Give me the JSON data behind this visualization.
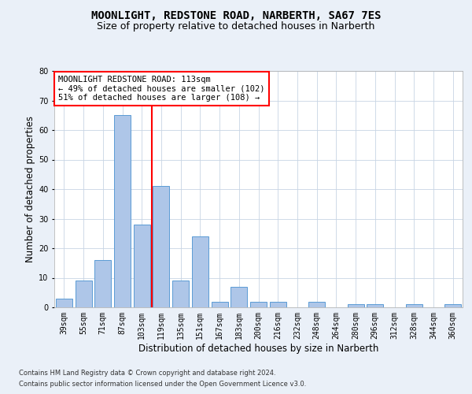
{
  "title": "MOONLIGHT, REDSTONE ROAD, NARBERTH, SA67 7ES",
  "subtitle": "Size of property relative to detached houses in Narberth",
  "xlabel": "Distribution of detached houses by size in Narberth",
  "ylabel": "Number of detached properties",
  "footnote1": "Contains HM Land Registry data © Crown copyright and database right 2024.",
  "footnote2": "Contains public sector information licensed under the Open Government Licence v3.0.",
  "categories": [
    "39sqm",
    "55sqm",
    "71sqm",
    "87sqm",
    "103sqm",
    "119sqm",
    "135sqm",
    "151sqm",
    "167sqm",
    "183sqm",
    "200sqm",
    "216sqm",
    "232sqm",
    "248sqm",
    "264sqm",
    "280sqm",
    "296sqm",
    "312sqm",
    "328sqm",
    "344sqm",
    "360sqm"
  ],
  "values": [
    3,
    9,
    16,
    65,
    28,
    41,
    9,
    24,
    2,
    7,
    2,
    2,
    0,
    2,
    0,
    1,
    1,
    0,
    1,
    0,
    1
  ],
  "bar_color": "#aec6e8",
  "bar_edge_color": "#5b9bd5",
  "property_line_x": 4.5,
  "annotation_text": "MOONLIGHT REDSTONE ROAD: 113sqm\n← 49% of detached houses are smaller (102)\n51% of detached houses are larger (108) →",
  "annotation_box_color": "white",
  "annotation_box_edge_color": "red",
  "vline_color": "red",
  "ylim": [
    0,
    80
  ],
  "yticks": [
    0,
    10,
    20,
    30,
    40,
    50,
    60,
    70,
    80
  ],
  "background_color": "#eaf0f8",
  "plot_background_color": "white",
  "grid_color": "#c8d4e4",
  "title_fontsize": 10,
  "subtitle_fontsize": 9,
  "xlabel_fontsize": 8.5,
  "ylabel_fontsize": 8.5,
  "tick_fontsize": 7,
  "annotation_fontsize": 7.5,
  "footnote_fontsize": 6
}
